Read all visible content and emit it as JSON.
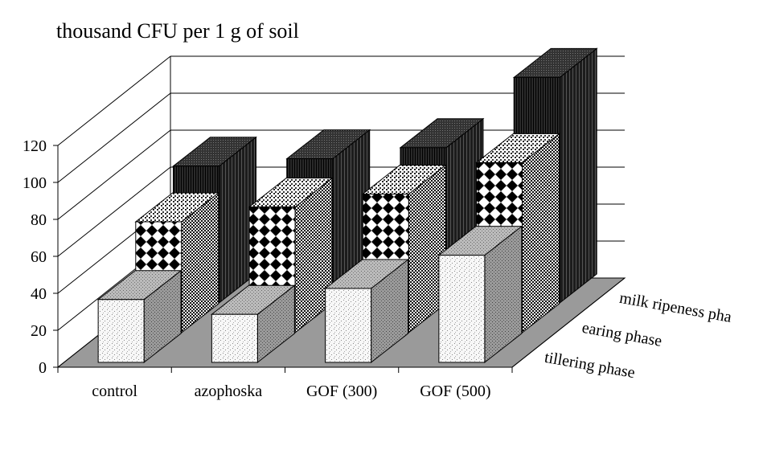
{
  "chart_data": {
    "type": "bar",
    "style": "3d-grouped-depth",
    "title": "thousand CFU per 1 g of soil",
    "xlabel": "",
    "ylabel": "",
    "ylim": [
      0,
      120
    ],
    "yticks": [
      0,
      20,
      40,
      60,
      80,
      100,
      120
    ],
    "grid": true,
    "categories": [
      "control",
      "azophoska",
      "GOF (300)",
      "GOF (500)"
    ],
    "series": [
      {
        "name": "tillering phase",
        "values": [
          34,
          26,
          40,
          58
        ],
        "pattern": "fine-dots",
        "color": "#f2f2f2"
      },
      {
        "name": "earing phase",
        "values": [
          60,
          68,
          75,
          92
        ],
        "pattern": "checker",
        "color": "#dddddd"
      },
      {
        "name": "milk ripeness pha",
        "values": [
          74,
          78,
          84,
          122
        ],
        "pattern": "dark-lines",
        "color": "#1a1a1a"
      }
    ]
  }
}
